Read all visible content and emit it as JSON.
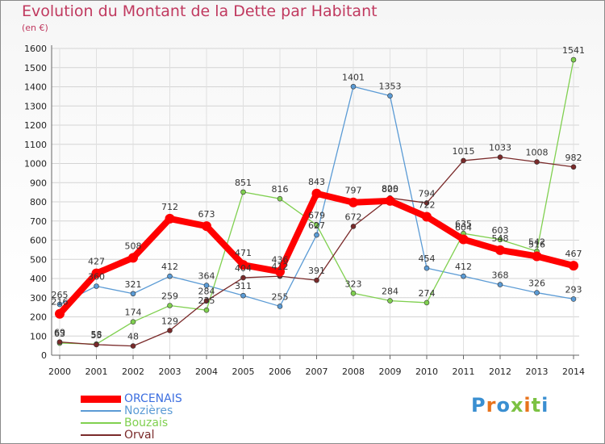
{
  "title": "Evolution du Montant de la Dette par Habitant",
  "subtitle": "(en €)",
  "logo": {
    "text": "Proxiti",
    "letters": [
      "P",
      "r",
      "o",
      "x",
      "i",
      "t",
      "i"
    ],
    "colors": [
      "#3a8fd1",
      "#e8731c",
      "#3a8fd1",
      "#7cc243",
      "#e8731c",
      "#7cc243",
      "#3a8fd1"
    ]
  },
  "chart_data": {
    "type": "line",
    "x": [
      "2000",
      "2001",
      "2002",
      "2003",
      "2004",
      "2005",
      "2006",
      "2007",
      "2008",
      "2009",
      "2010",
      "2011",
      "2012",
      "2013",
      "2014"
    ],
    "ylim": [
      0,
      1600
    ],
    "yticks": [
      0,
      100,
      200,
      300,
      400,
      500,
      600,
      700,
      800,
      900,
      1000,
      1100,
      1200,
      1300,
      1400,
      1500,
      1600
    ],
    "grid": true,
    "legend_position": "bottom-left",
    "series": [
      {
        "name": "ORCENAIS",
        "color": "#ff0000",
        "values": [
          216,
          427,
          508,
          712,
          673,
          471,
          436,
          843,
          797,
          805,
          722,
          604,
          548,
          516,
          467
        ],
        "labels": [
          "216",
          "427",
          "508",
          "712",
          "673",
          "471",
          "436",
          "843",
          "797",
          "805",
          "722",
          "604",
          "548",
          "516",
          "467"
        ]
      },
      {
        "name": "Nozières",
        "color": "#5b9bd5",
        "values": [
          265,
          360,
          321,
          412,
          364,
          311,
          255,
          627,
          1401,
          1353,
          454,
          412,
          368,
          326,
          293
        ],
        "labels": [
          "265",
          "360",
          "321",
          "412",
          "364",
          "311",
          "255",
          "627",
          "1401",
          "1353",
          "454",
          "412",
          "368",
          "326",
          "293"
        ]
      },
      {
        "name": "Bouzais",
        "color": "#80d050",
        "values": [
          63,
          58,
          174,
          259,
          235,
          851,
          816,
          679,
          323,
          284,
          274,
          635,
          603,
          542,
          1541
        ],
        "labels": [
          "63",
          "58",
          "174",
          "259",
          "235",
          "851",
          "816",
          "679",
          "323",
          "284",
          "274",
          "635",
          "603",
          "542",
          "1541"
        ]
      },
      {
        "name": "Orval",
        "color": "#7a2a2a",
        "values": [
          69,
          55,
          48,
          129,
          284,
          404,
          412,
          391,
          672,
          820,
          794,
          1015,
          1033,
          1008,
          982
        ],
        "labels": [
          "69",
          "55",
          "48",
          "129",
          "284",
          "404",
          "412",
          "391",
          "672",
          "820",
          "794",
          "1015",
          "1033",
          "1008",
          "982"
        ]
      }
    ]
  }
}
